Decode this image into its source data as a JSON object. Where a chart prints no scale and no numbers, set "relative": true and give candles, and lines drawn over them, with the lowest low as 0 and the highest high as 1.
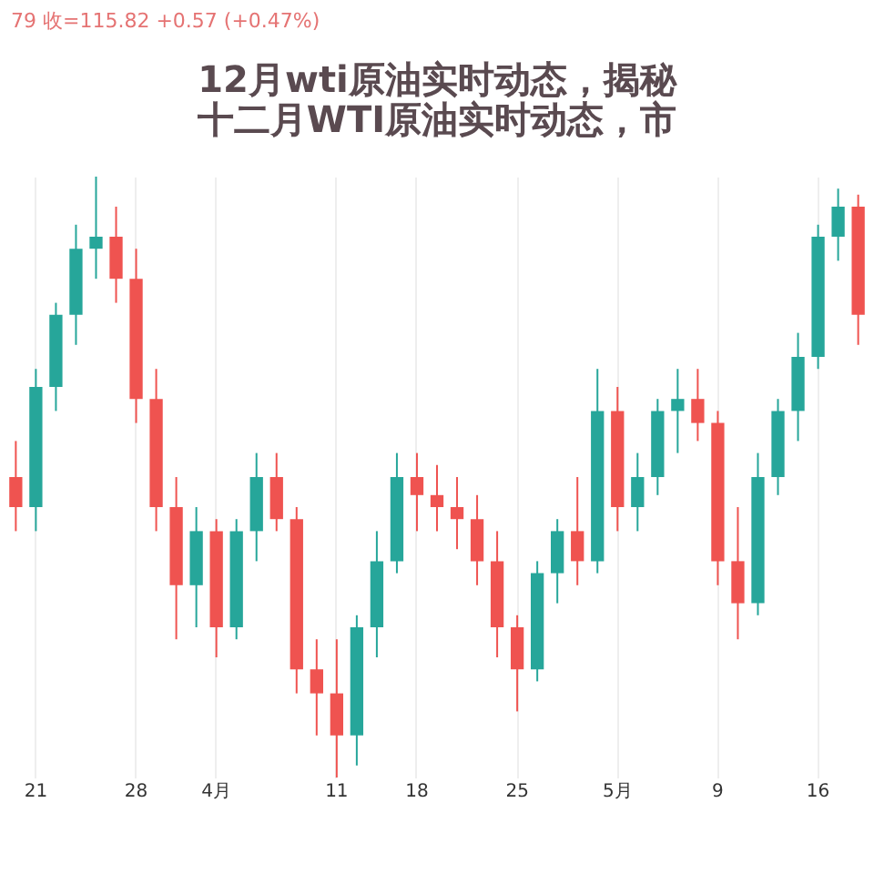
{
  "chart_data": {
    "type": "candlestick",
    "title": "12月wti原油实时动态，揭秘十二月WTI原油实时动态，市",
    "annotations": [
      "79 收=115.82 +0.57 (+0.47%)"
    ],
    "relative": true,
    "grid": "x",
    "categories": [
      null,
      "21",
      null,
      null,
      null,
      null,
      "28",
      null,
      null,
      null,
      "4月",
      null,
      null,
      null,
      null,
      null,
      "11",
      null,
      null,
      null,
      "18",
      null,
      null,
      null,
      null,
      "25",
      null,
      null,
      null,
      null,
      "5月",
      null,
      null,
      null,
      null,
      "9",
      null,
      null,
      null,
      null,
      "16",
      null,
      null
    ],
    "ohlc": [
      [
        0.5,
        0.56,
        0.41,
        0.45
      ],
      [
        0.45,
        0.68,
        0.41,
        0.65
      ],
      [
        0.65,
        0.79,
        0.61,
        0.77
      ],
      [
        0.77,
        0.92,
        0.72,
        0.88
      ],
      [
        0.88,
        1,
        0.83,
        0.9
      ],
      [
        0.9,
        0.95,
        0.79,
        0.83
      ],
      [
        0.83,
        0.88,
        0.59,
        0.63
      ],
      [
        0.63,
        0.68,
        0.41,
        0.45
      ],
      [
        0.45,
        0.5,
        0.23,
        0.32
      ],
      [
        0.32,
        0.45,
        0.25,
        0.41
      ],
      [
        0.41,
        0.43,
        0.2,
        0.25
      ],
      [
        0.25,
        0.43,
        0.23,
        0.41
      ],
      [
        0.41,
        0.54,
        0.36,
        0.5
      ],
      [
        0.5,
        0.54,
        0.41,
        0.43
      ],
      [
        0.43,
        0.45,
        0.14,
        0.18
      ],
      [
        0.18,
        0.23,
        0.07,
        0.14
      ],
      [
        0.14,
        0.23,
        0,
        0.07
      ],
      [
        0.07,
        0.27,
        0.02,
        0.25
      ],
      [
        0.25,
        0.41,
        0.2,
        0.36
      ],
      [
        0.36,
        0.54,
        0.34,
        0.5
      ],
      [
        0.5,
        0.54,
        0.41,
        0.47
      ],
      [
        0.47,
        0.52,
        0.41,
        0.45
      ],
      [
        0.45,
        0.5,
        0.38,
        0.43
      ],
      [
        0.43,
        0.47,
        0.32,
        0.36
      ],
      [
        0.36,
        0.41,
        0.2,
        0.25
      ],
      [
        0.25,
        0.27,
        0.11,
        0.18
      ],
      [
        0.18,
        0.36,
        0.16,
        0.34
      ],
      [
        0.34,
        0.43,
        0.29,
        0.41
      ],
      [
        0.41,
        0.5,
        0.32,
        0.36
      ],
      [
        0.36,
        0.68,
        0.34,
        0.61
      ],
      [
        0.61,
        0.65,
        0.41,
        0.45
      ],
      [
        0.45,
        0.54,
        0.41,
        0.5
      ],
      [
        0.5,
        0.63,
        0.47,
        0.61
      ],
      [
        0.61,
        0.68,
        0.54,
        0.63
      ],
      [
        0.63,
        0.68,
        0.56,
        0.59
      ],
      [
        0.59,
        0.61,
        0.32,
        0.36
      ],
      [
        0.36,
        0.45,
        0.23,
        0.29
      ],
      [
        0.29,
        0.54,
        0.27,
        0.5
      ],
      [
        0.5,
        0.63,
        0.47,
        0.61
      ],
      [
        0.61,
        0.74,
        0.56,
        0.7
      ],
      [
        0.7,
        0.92,
        0.68,
        0.9
      ],
      [
        0.9,
        0.98,
        0.86,
        0.95
      ],
      [
        0.95,
        0.97,
        0.72,
        0.77
      ]
    ],
    "colors": [
      "#ef5350",
      "#26a69a",
      "#26a69a",
      "#26a69a",
      "#26a69a",
      "#ef5350",
      "#ef5350",
      "#ef5350",
      "#ef5350",
      "#26a69a",
      "#ef5350",
      "#26a69a",
      "#26a69a",
      "#ef5350",
      "#ef5350",
      "#ef5350",
      "#ef5350",
      "#26a69a",
      "#26a69a",
      "#26a69a",
      "#ef5350",
      "#ef5350",
      "#ef5350",
      "#ef5350",
      "#ef5350",
      "#ef5350",
      "#26a69a",
      "#26a69a",
      "#ef5350",
      "#26a69a",
      "#ef5350",
      "#26a69a",
      "#26a69a",
      "#26a69a",
      "#ef5350",
      "#ef5350",
      "#ef5350",
      "#26a69a",
      "#26a69a",
      "#26a69a",
      "#26a69a",
      "#26a69a",
      "#ef5350"
    ]
  }
}
